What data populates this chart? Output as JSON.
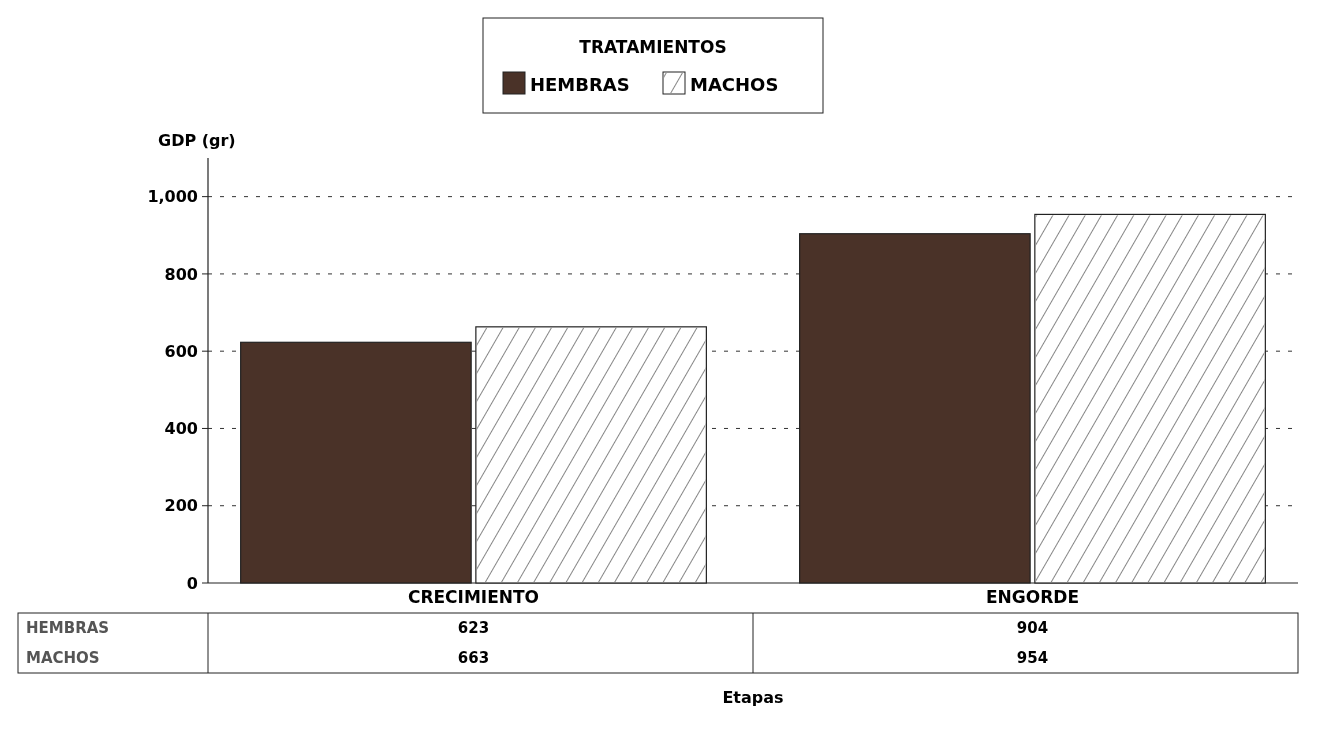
{
  "chart_data": {
    "type": "bar",
    "annotations": [
      "Etapas"
    ],
    "ylabel": "GDP (gr)",
    "legend_title": "TRATAMIENTOS",
    "legend": "top",
    "categories": [
      "CRECIMIENTO",
      "ENGORDE"
    ],
    "series": [
      {
        "name": "HEMBRAS",
        "color": "#4a3228",
        "values": [
          623,
          904
        ]
      },
      {
        "name": "MACHOS",
        "color": "#ffffff",
        "values": [
          663,
          954
        ]
      }
    ],
    "ylim": [
      0,
      1100
    ],
    "yticks": [
      0,
      200,
      400,
      600,
      800,
      {
        "value": 1000,
        "label": "1,000"
      }
    ],
    "grid": "y",
    "data_labels": true
  }
}
